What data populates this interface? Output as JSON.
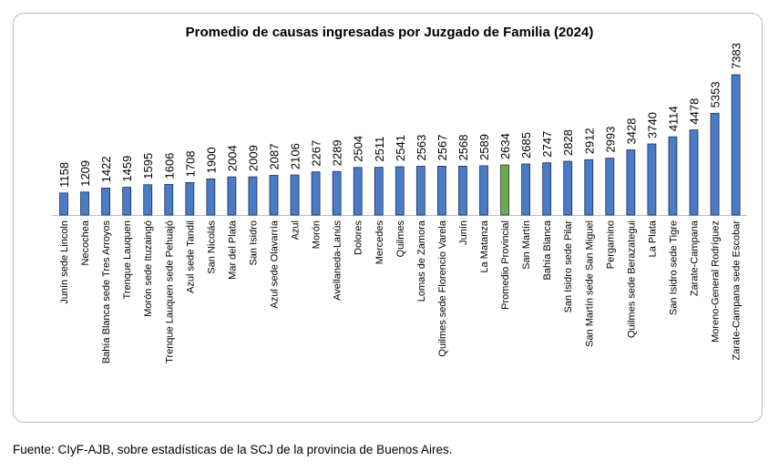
{
  "chart_data": {
    "type": "bar",
    "title": "Promedio de causas ingresadas por Juzgado de Familia (2024)",
    "xlabel": "",
    "ylabel": "",
    "ylim": [
      0,
      7383
    ],
    "grid": false,
    "legend": "none",
    "categories": [
      "Junín sede Lincoln",
      "Necochea",
      "Bahía Blanca sede Tres Arroyos",
      "Trenque Lauquen",
      "Morón sede Ituzaingó",
      "Trenque Lauquen sede Pehuajó",
      "Azul sede Tandil",
      "San Nicolás",
      "Mar del Plata",
      "San Isidro",
      "Azul sede Olavarría",
      "Azul",
      "Morón",
      "Avellaneda-Lanús",
      "Dolores",
      "Mercedes",
      "Quilmes",
      "Lomas de Zamora",
      "Quilmes sede Florencio Varela",
      "Junín",
      "La Matanza",
      "Promedio Provincial",
      "San Martín",
      "Bahía Blanca",
      "San Isidro sede Pilar",
      "San Martín  sede San Miguel",
      "Pergamino",
      "Quilmes sede Berazategui",
      "La Plata",
      "San Isidro sede Tigre",
      "Zarate-Campana",
      "Moreno-General Rodríguez",
      "Zarate-Campana sede Escobar"
    ],
    "values": [
      1158,
      1209,
      1422,
      1459,
      1595,
      1606,
      1708,
      1900,
      2004,
      2009,
      2087,
      2106,
      2267,
      2289,
      2504,
      2511,
      2541,
      2563,
      2567,
      2568,
      2589,
      2634,
      2685,
      2747,
      2828,
      2912,
      2993,
      3428,
      3740,
      4114,
      4478,
      5353,
      7383
    ],
    "colors": {
      "bar": "#4a7bc6",
      "highlight": "#70ad47",
      "outline": "#1f2f4f"
    },
    "highlight_category": "Promedio Provincial"
  },
  "source": "Fuente: CIyF-AJB, sobre estadísticas de la SCJ de la provincia de Buenos Aires."
}
